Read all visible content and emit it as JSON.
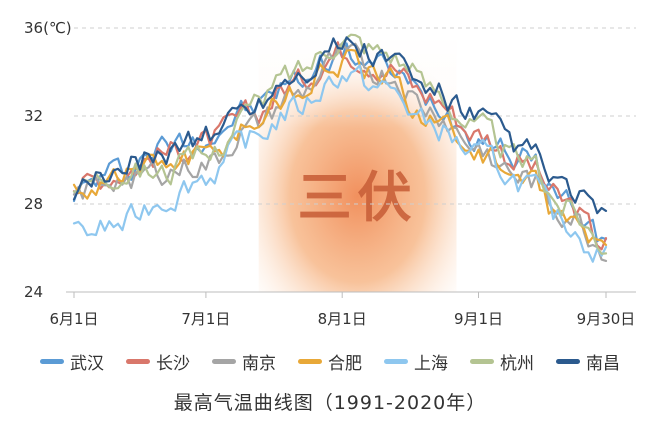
{
  "chart_data": {
    "type": "line",
    "title": "最高气温曲线图（1991-2020年）",
    "y_unit_label": "36(℃)",
    "x_tick_labels": [
      "6月1日",
      "7月1日",
      "8月1日",
      "9月1日",
      "9月30日"
    ],
    "x_tick_days": [
      1,
      31,
      62,
      93,
      122
    ],
    "y_ticks": [
      24,
      28,
      32,
      36
    ],
    "y_tick_labels": [
      "24",
      "28",
      "32",
      "36(℃)"
    ],
    "ylim": [
      24,
      36
    ],
    "grid": true,
    "highlight_band": {
      "label": "三伏",
      "start_day": 43,
      "end_day": 88
    },
    "legend_position": "bottom",
    "anchor_days": [
      1,
      11,
      21,
      31,
      41,
      51,
      62,
      72,
      82,
      93,
      103,
      113,
      122
    ],
    "series": [
      {
        "name": "武汉",
        "color": "#5b9bd5",
        "values": [
          28.6,
          29.5,
          30.6,
          31.1,
          32.3,
          33.6,
          34.9,
          34.2,
          32.7,
          31.2,
          30.1,
          28.2,
          26.4
        ]
      },
      {
        "name": "长沙",
        "color": "#d9776b",
        "values": [
          28.8,
          29.4,
          30.3,
          30.8,
          32.0,
          33.5,
          35.0,
          34.3,
          32.9,
          31.2,
          29.9,
          28.0,
          26.2
        ]
      },
      {
        "name": "南京",
        "color": "#a5a5a5",
        "values": [
          28.4,
          29.2,
          29.5,
          29.8,
          31.4,
          32.9,
          34.6,
          33.9,
          32.3,
          30.6,
          29.2,
          27.6,
          26.0
        ]
      },
      {
        "name": "合肥",
        "color": "#e8a838",
        "values": [
          28.6,
          29.4,
          29.9,
          30.2,
          31.7,
          33.1,
          34.5,
          33.6,
          32.0,
          30.4,
          29.1,
          27.3,
          25.9
        ]
      },
      {
        "name": "上海",
        "color": "#8ec7ef",
        "values": [
          26.6,
          27.0,
          28.2,
          29.3,
          30.9,
          32.3,
          33.9,
          33.2,
          31.6,
          30.2,
          29.0,
          27.1,
          25.6
        ]
      },
      {
        "name": "杭州",
        "color": "#b4c492",
        "values": [
          28.9,
          29.6,
          29.5,
          30.1,
          32.3,
          34.0,
          35.6,
          35.0,
          33.3,
          31.5,
          30.0,
          27.9,
          26.3
        ]
      },
      {
        "name": "南昌",
        "color": "#2b5a8e",
        "values": [
          28.3,
          29.6,
          30.4,
          31.1,
          32.5,
          33.9,
          35.2,
          34.6,
          33.1,
          31.8,
          30.5,
          28.6,
          27.4
        ]
      }
    ]
  }
}
